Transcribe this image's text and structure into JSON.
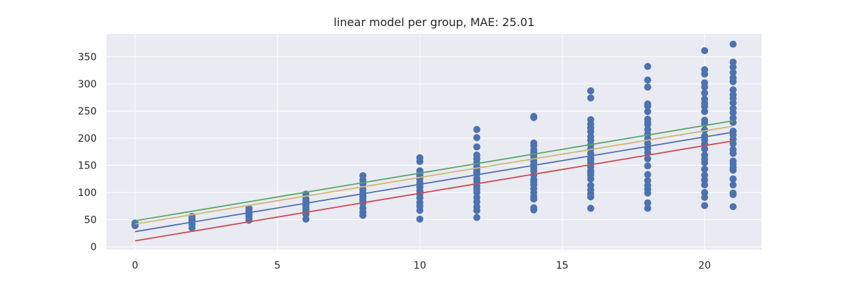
{
  "chart_data": {
    "type": "scatter",
    "title": "linear model per group, MAE: 25.01",
    "xlabel": "",
    "ylabel": "",
    "xlim": [
      -1,
      22
    ],
    "ylim": [
      -5,
      392
    ],
    "xticks": [
      0,
      5,
      10,
      15,
      20
    ],
    "yticks": [
      0,
      50,
      100,
      150,
      200,
      250,
      300,
      350
    ],
    "grid": true,
    "colors": {
      "background": "#EAEAF2",
      "grid": "#FFFFFF",
      "points": "#4C72B0",
      "line_blue": "#4C72B0",
      "line_red": "#C44E52",
      "line_green": "#55A868",
      "line_yellow": "#CCB974"
    },
    "points": [
      {
        "x": 0,
        "y": [
          42,
          39,
          41,
          44,
          40
        ]
      },
      {
        "x": 2,
        "y": [
          56,
          50,
          46,
          41,
          35,
          53,
          48
        ]
      },
      {
        "x": 4,
        "y": [
          71,
          67,
          63,
          59,
          56,
          52,
          49,
          61,
          65
        ]
      },
      {
        "x": 6,
        "y": [
          97,
          88,
          84,
          79,
          74,
          70,
          65,
          60,
          51,
          83,
          76,
          68
        ]
      },
      {
        "x": 8,
        "y": [
          131,
          123,
          106,
          100,
          95,
          88,
          80,
          71,
          64,
          58,
          116,
          92,
          85
        ]
      },
      {
        "x": 10,
        "y": [
          164,
          157,
          140,
          135,
          125,
          118,
          110,
          103,
          97,
          90,
          82,
          75,
          67,
          51,
          131,
          115
        ]
      },
      {
        "x": 12,
        "y": [
          216,
          201,
          184,
          169,
          162,
          155,
          148,
          142,
          134,
          126,
          120,
          112,
          106,
          100,
          91,
          83,
          74,
          67,
          54,
          137
        ]
      },
      {
        "x": 14,
        "y": [
          240,
          238,
          191,
          186,
          179,
          174,
          165,
          158,
          152,
          146,
          140,
          132,
          124,
          114,
          107,
          100,
          93,
          88,
          72,
          68,
          170,
          119
        ]
      },
      {
        "x": 16,
        "y": [
          287,
          274,
          234,
          226,
          219,
          212,
          203,
          196,
          188,
          180,
          172,
          164,
          155,
          147,
          140,
          132,
          125,
          113,
          105,
          98,
          92,
          71,
          160,
          137
        ]
      },
      {
        "x": 18,
        "y": [
          332,
          307,
          294,
          263,
          259,
          249,
          235,
          229,
          216,
          207,
          199,
          190,
          181,
          173,
          162,
          149,
          133,
          122,
          113,
          106,
          99,
          81,
          71,
          225
        ]
      },
      {
        "x": 20,
        "y": [
          361,
          326,
          318,
          302,
          294,
          283,
          272,
          264,
          258,
          249,
          233,
          227,
          215,
          204,
          197,
          189,
          180,
          169,
          161,
          155,
          143,
          132,
          123,
          114,
          100,
          91,
          76
        ]
      },
      {
        "x": 21,
        "y": [
          373,
          340,
          331,
          321,
          311,
          304,
          289,
          280,
          273,
          265,
          255,
          247,
          237,
          229,
          213,
          206,
          198,
          190,
          179,
          172,
          158,
          152,
          146,
          141,
          125,
          114,
          99,
          96,
          74
        ]
      }
    ],
    "series": [
      {
        "color": "#55A868",
        "x": [
          0,
          21
        ],
        "y": [
          48,
          232
        ]
      },
      {
        "color": "#CCB974",
        "x": [
          0,
          21
        ],
        "y": [
          42,
          222
        ]
      },
      {
        "color": "#4C72B0",
        "x": [
          0,
          21
        ],
        "y": [
          28,
          211
        ]
      },
      {
        "color": "#C44E52",
        "x": [
          0,
          21
        ],
        "y": [
          11,
          195
        ]
      }
    ]
  }
}
